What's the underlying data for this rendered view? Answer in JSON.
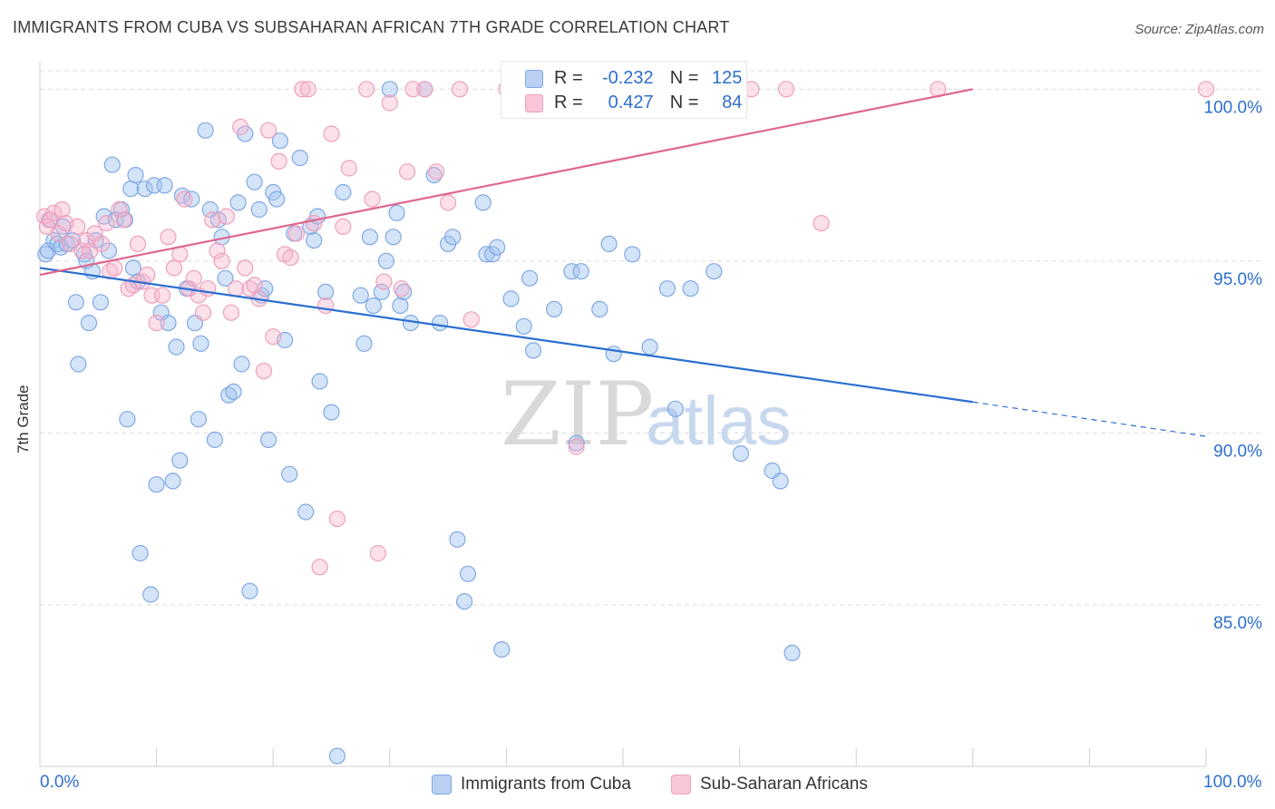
{
  "title": "IMMIGRANTS FROM CUBA VS SUBSAHARAN AFRICAN 7TH GRADE CORRELATION CHART",
  "source": "Source: ZipAtlas.com",
  "watermark": {
    "zip": "ZIP",
    "atlas": "atlas"
  },
  "legend_top": {
    "rows": [
      {
        "r_key": "R =",
        "r_val": "-0.232",
        "n_key": "N =",
        "n_val": "125"
      },
      {
        "r_key": "R =",
        "r_val": "0.427",
        "n_key": "N =",
        "n_val": "84"
      }
    ]
  },
  "legend_bottom": [
    "Immigrants from Cuba",
    "Sub-Saharan Africans"
  ],
  "x_tick_labels": {
    "left": "0.0%",
    "right": "100.0%"
  },
  "colors": {
    "blue": "#2a6fd1",
    "blue_fill": "rgba(160,195,240,0.45)",
    "blue_stroke": "#7fa8e4",
    "pink": "#e0668e",
    "pink_fill": "rgba(248,180,205,0.40)",
    "pink_stroke": "#ee9fbb",
    "grid": "#dcdcdc",
    "tick_label": "#2e6fcf"
  },
  "chart_data": {
    "type": "scatter",
    "title": "IMMIGRANTS FROM CUBA VS SUBSAHARAN AFRICAN 7TH GRADE CORRELATION CHART",
    "xlabel": "",
    "ylabel": "7th Grade",
    "xlim": [
      0,
      100
    ],
    "ylim": [
      80.3,
      100.8
    ],
    "y_ticks": [
      85,
      90,
      95,
      100
    ],
    "y_tick_labels": [
      "85.0%",
      "90.0%",
      "95.0%",
      "100.0%"
    ],
    "x_tick_labels": [
      "0.0%",
      "100.0%"
    ],
    "grid": true,
    "legend_position": "bottom",
    "series": [
      {
        "name": "Immigrants from Cuba",
        "R": -0.232,
        "N": 125,
        "trend": {
          "x0": 0,
          "y0": 94.8,
          "x1": 80,
          "y1": 90.9,
          "dashed_to_x": 100,
          "dashed_to_y": 89.9
        },
        "points": [
          [
            0.5,
            95.2
          ],
          [
            0.7,
            95.3
          ],
          [
            0.8,
            96.2
          ],
          [
            1.2,
            95.6
          ],
          [
            1.5,
            95.5
          ],
          [
            1.8,
            95.4
          ],
          [
            2.0,
            96.0
          ],
          [
            2.3,
            95.5
          ],
          [
            2.8,
            95.6
          ],
          [
            3.1,
            93.8
          ],
          [
            3.3,
            92.0
          ],
          [
            3.8,
            95.2
          ],
          [
            4.0,
            95.0
          ],
          [
            4.2,
            93.2
          ],
          [
            4.5,
            94.7
          ],
          [
            4.8,
            95.6
          ],
          [
            5.2,
            93.8
          ],
          [
            5.5,
            96.3
          ],
          [
            5.9,
            95.3
          ],
          [
            6.2,
            97.8
          ],
          [
            6.5,
            96.2
          ],
          [
            7.0,
            96.5
          ],
          [
            7.3,
            96.2
          ],
          [
            7.5,
            90.4
          ],
          [
            7.8,
            97.1
          ],
          [
            8.0,
            94.8
          ],
          [
            8.2,
            97.5
          ],
          [
            8.4,
            94.4
          ],
          [
            8.6,
            86.5
          ],
          [
            9.0,
            97.1
          ],
          [
            9.5,
            85.3
          ],
          [
            9.8,
            97.2
          ],
          [
            10.0,
            88.5
          ],
          [
            10.4,
            93.5
          ],
          [
            10.7,
            97.2
          ],
          [
            11.0,
            93.2
          ],
          [
            11.4,
            88.6
          ],
          [
            11.7,
            92.5
          ],
          [
            12.0,
            89.2
          ],
          [
            12.2,
            96.9
          ],
          [
            12.6,
            94.2
          ],
          [
            13.0,
            96.8
          ],
          [
            13.3,
            93.2
          ],
          [
            13.6,
            90.4
          ],
          [
            13.8,
            92.6
          ],
          [
            14.2,
            98.8
          ],
          [
            14.6,
            96.5
          ],
          [
            15.0,
            89.8
          ],
          [
            15.3,
            96.2
          ],
          [
            15.6,
            95.7
          ],
          [
            15.9,
            94.5
          ],
          [
            16.2,
            91.1
          ],
          [
            16.6,
            91.2
          ],
          [
            17.0,
            96.7
          ],
          [
            17.3,
            92.0
          ],
          [
            17.6,
            98.7
          ],
          [
            18.0,
            85.4
          ],
          [
            18.4,
            97.3
          ],
          [
            18.8,
            96.5
          ],
          [
            19.0,
            94.0
          ],
          [
            19.3,
            94.2
          ],
          [
            19.6,
            89.8
          ],
          [
            20.0,
            97.0
          ],
          [
            20.3,
            96.8
          ],
          [
            20.6,
            98.5
          ],
          [
            21.0,
            92.7
          ],
          [
            21.4,
            88.8
          ],
          [
            21.8,
            95.8
          ],
          [
            22.3,
            98.0
          ],
          [
            22.8,
            87.7
          ],
          [
            23.2,
            96.0
          ],
          [
            23.5,
            95.6
          ],
          [
            23.8,
            96.3
          ],
          [
            24.0,
            91.5
          ],
          [
            24.5,
            94.1
          ],
          [
            25.0,
            90.6
          ],
          [
            25.5,
            80.6
          ],
          [
            26.0,
            97.0
          ],
          [
            27.5,
            94.0
          ],
          [
            27.8,
            92.6
          ],
          [
            28.3,
            95.7
          ],
          [
            28.6,
            93.7
          ],
          [
            29.3,
            94.1
          ],
          [
            29.7,
            95.0
          ],
          [
            30.0,
            100.0
          ],
          [
            30.3,
            95.7
          ],
          [
            30.6,
            96.4
          ],
          [
            30.9,
            93.7
          ],
          [
            31.2,
            94.1
          ],
          [
            31.8,
            93.2
          ],
          [
            33.0,
            100.0
          ],
          [
            33.8,
            97.5
          ],
          [
            34.3,
            93.2
          ],
          [
            35.0,
            95.5
          ],
          [
            35.4,
            95.7
          ],
          [
            35.8,
            86.9
          ],
          [
            36.4,
            85.1
          ],
          [
            36.7,
            85.9
          ],
          [
            38.0,
            96.7
          ],
          [
            38.3,
            95.2
          ],
          [
            38.8,
            95.2
          ],
          [
            39.2,
            95.4
          ],
          [
            39.6,
            83.7
          ],
          [
            40.4,
            93.9
          ],
          [
            41.5,
            93.1
          ],
          [
            42.0,
            94.5
          ],
          [
            42.3,
            92.4
          ],
          [
            44.1,
            93.6
          ],
          [
            45.6,
            94.7
          ],
          [
            46.0,
            89.7
          ],
          [
            46.4,
            94.7
          ],
          [
            48.0,
            93.6
          ],
          [
            48.8,
            95.5
          ],
          [
            49.2,
            92.3
          ],
          [
            49.5,
            99.5
          ],
          [
            50.8,
            95.2
          ],
          [
            52.3,
            92.5
          ],
          [
            53.8,
            94.2
          ],
          [
            54.5,
            90.7
          ],
          [
            55.8,
            94.2
          ],
          [
            57.8,
            94.7
          ],
          [
            60.1,
            89.4
          ],
          [
            62.8,
            88.9
          ],
          [
            63.5,
            88.6
          ],
          [
            64.5,
            83.6
          ]
        ]
      },
      {
        "name": "Sub-Saharan Africans",
        "R": 0.427,
        "N": 84,
        "trend": {
          "x0": 0,
          "y0": 94.6,
          "x1": 80,
          "y1": 100.0
        },
        "points": [
          [
            0.4,
            96.3
          ],
          [
            0.6,
            96.0
          ],
          [
            0.9,
            96.2
          ],
          [
            1.2,
            96.4
          ],
          [
            1.6,
            95.8
          ],
          [
            1.9,
            96.5
          ],
          [
            2.2,
            96.1
          ],
          [
            2.6,
            95.5
          ],
          [
            3.2,
            96.0
          ],
          [
            3.6,
            95.3
          ],
          [
            4.0,
            95.6
          ],
          [
            4.3,
            95.3
          ],
          [
            4.7,
            95.8
          ],
          [
            5.3,
            95.5
          ],
          [
            5.7,
            96.1
          ],
          [
            6.0,
            94.7
          ],
          [
            6.4,
            94.8
          ],
          [
            6.8,
            96.5
          ],
          [
            7.2,
            96.2
          ],
          [
            7.6,
            94.2
          ],
          [
            8.0,
            94.3
          ],
          [
            8.4,
            95.5
          ],
          [
            8.8,
            94.4
          ],
          [
            9.2,
            94.6
          ],
          [
            9.6,
            94.0
          ],
          [
            10.0,
            93.2
          ],
          [
            10.5,
            94.0
          ],
          [
            11.0,
            95.7
          ],
          [
            11.5,
            94.8
          ],
          [
            12.0,
            95.2
          ],
          [
            12.4,
            96.8
          ],
          [
            12.8,
            94.2
          ],
          [
            13.2,
            94.5
          ],
          [
            13.6,
            94.0
          ],
          [
            14.0,
            93.5
          ],
          [
            14.4,
            94.2
          ],
          [
            14.8,
            96.2
          ],
          [
            15.2,
            95.3
          ],
          [
            15.6,
            95.0
          ],
          [
            16.0,
            96.3
          ],
          [
            16.4,
            93.5
          ],
          [
            16.8,
            94.2
          ],
          [
            17.2,
            98.9
          ],
          [
            17.6,
            94.8
          ],
          [
            18.0,
            94.2
          ],
          [
            18.4,
            94.3
          ],
          [
            18.8,
            93.9
          ],
          [
            19.2,
            91.8
          ],
          [
            19.6,
            98.8
          ],
          [
            20.0,
            92.8
          ],
          [
            20.5,
            97.9
          ],
          [
            21.0,
            95.2
          ],
          [
            21.5,
            95.1
          ],
          [
            22.0,
            95.8
          ],
          [
            22.5,
            100.0
          ],
          [
            23.0,
            100.0
          ],
          [
            23.5,
            96.1
          ],
          [
            24.0,
            86.1
          ],
          [
            24.5,
            93.7
          ],
          [
            25.0,
            98.7
          ],
          [
            25.5,
            87.5
          ],
          [
            26.0,
            96.0
          ],
          [
            26.5,
            97.7
          ],
          [
            28.0,
            100.0
          ],
          [
            28.5,
            96.8
          ],
          [
            29.0,
            86.5
          ],
          [
            29.5,
            94.4
          ],
          [
            30.0,
            99.6
          ],
          [
            31.0,
            94.2
          ],
          [
            31.5,
            97.6
          ],
          [
            32.0,
            100.0
          ],
          [
            33.0,
            100.0
          ],
          [
            34.0,
            97.6
          ],
          [
            35.0,
            96.7
          ],
          [
            36.0,
            100.0
          ],
          [
            37.0,
            93.3
          ],
          [
            40.0,
            100.0
          ],
          [
            46.0,
            89.6
          ],
          [
            55.0,
            100.0
          ],
          [
            61.0,
            100.0
          ],
          [
            64.0,
            100.0
          ],
          [
            67.0,
            96.1
          ],
          [
            77.0,
            100.0
          ],
          [
            100.0,
            100.0
          ]
        ]
      }
    ]
  }
}
